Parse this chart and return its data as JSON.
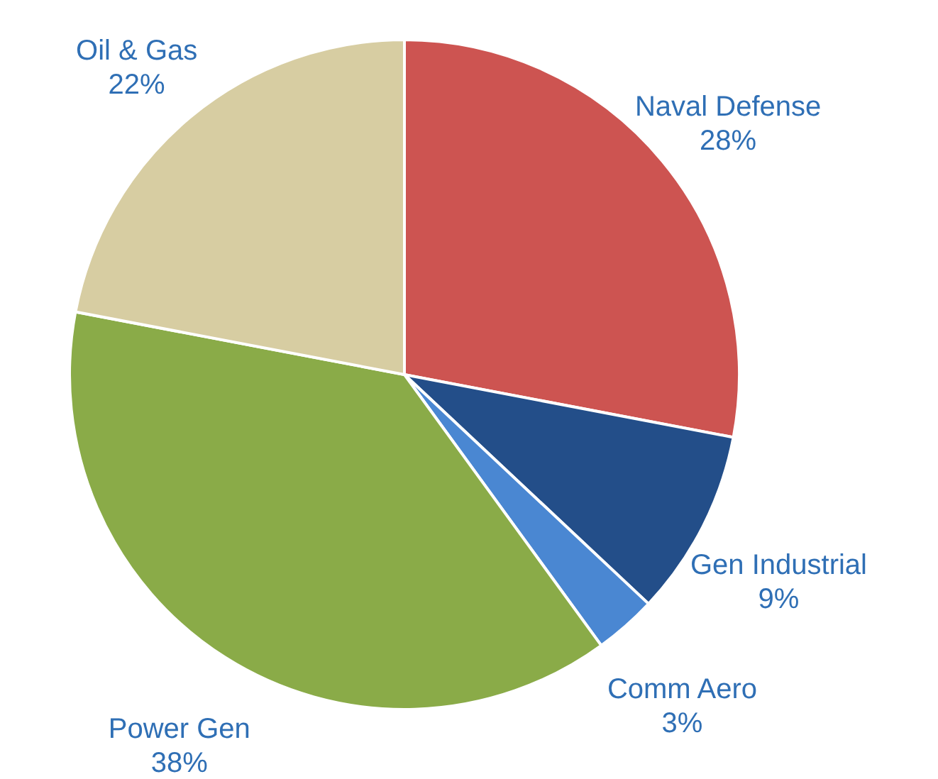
{
  "chart_data": {
    "type": "pie",
    "categories": [
      "Naval Defense",
      "Gen Industrial",
      "Comm Aero",
      "Power Gen",
      "Oil & Gas"
    ],
    "values": [
      28,
      9,
      3,
      38,
      22
    ],
    "value_labels": [
      "28%",
      "9%",
      "3%",
      "38%",
      "22%"
    ],
    "colors": [
      "#cd5451",
      "#234e89",
      "#4a87d2",
      "#8aab48",
      "#d7cda2"
    ]
  }
}
